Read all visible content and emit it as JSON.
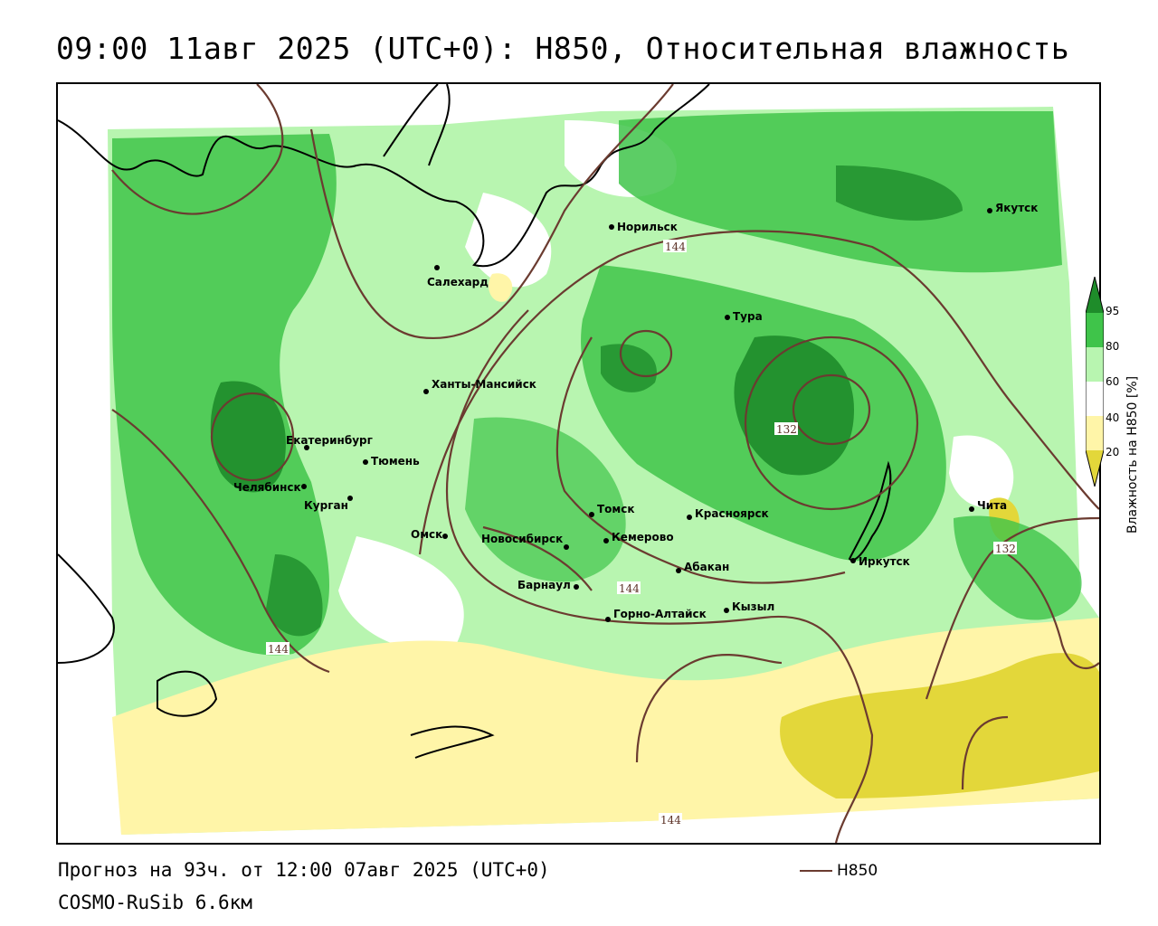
{
  "title": "09:00 11авг 2025 (UTC+0): H850, Относительная влажность",
  "footer": {
    "forecast": "Прогноз на 93ч. от 12:00 07авг 2025 (UTC+0)",
    "model": "COSMO-RuSib 6.6км"
  },
  "legend": {
    "contour_label": "H850",
    "contour_color": "#6b3b30"
  },
  "colorbar": {
    "title": "Влажность на H850 [%]",
    "ticks": [
      "95",
      "80",
      "60",
      "40",
      "20"
    ],
    "colors": {
      "c95": "#1e8c2a",
      "c80": "#3fc44a",
      "c60": "#b8f5b0",
      "c40": "#ffffff",
      "c20": "#fff5a8",
      "c0": "#e3d73a"
    }
  },
  "cities": [
    {
      "name": "Якутск"
    },
    {
      "name": "Норильск"
    },
    {
      "name": "Салехард"
    },
    {
      "name": "Тура"
    },
    {
      "name": "Ханты-Мансийск"
    },
    {
      "name": "Екатеринбург"
    },
    {
      "name": "Тюмень"
    },
    {
      "name": "Челябинск"
    },
    {
      "name": "Курган"
    },
    {
      "name": "Омск"
    },
    {
      "name": "Новосибирск"
    },
    {
      "name": "Томск"
    },
    {
      "name": "Кемерово"
    },
    {
      "name": "Красноярск"
    },
    {
      "name": "Барнаул"
    },
    {
      "name": "Абакан"
    },
    {
      "name": "Горно-Алтайск"
    },
    {
      "name": "Кызыл"
    },
    {
      "name": "Иркутск"
    },
    {
      "name": "Чита"
    }
  ],
  "isolines": [
    {
      "label": "144"
    },
    {
      "label": "132"
    },
    {
      "label": "144"
    },
    {
      "label": "132"
    },
    {
      "label": "144"
    },
    {
      "label": "144"
    }
  ]
}
